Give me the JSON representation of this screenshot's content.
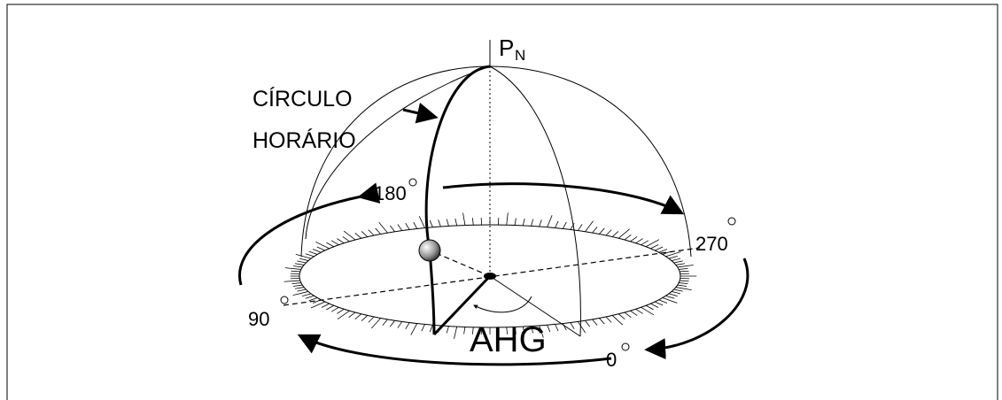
{
  "labels": {
    "pole": "P",
    "pole_sub": "N",
    "circle_line1": "CÍRCULO",
    "circle_line2": "HORÁRIO",
    "deg_180": "180",
    "deg_270": "270",
    "deg_90": "90",
    "deg_0": "0",
    "angle": "AHG"
  }
}
